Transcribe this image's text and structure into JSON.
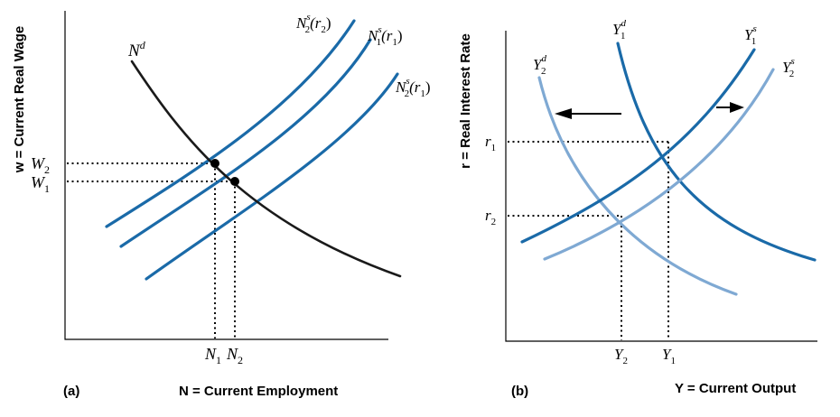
{
  "panel_a": {
    "tag": "(a)",
    "y_axis_label": "w = Current Real Wage",
    "x_axis_label": "N = Current Employment",
    "wage_labels": {
      "w2_base": "W",
      "w2_sub": "2",
      "w1_base": "W",
      "w1_sub": "1"
    },
    "employment_labels": {
      "n1_base": "N",
      "n1_sub": "1",
      "n2_base": "N",
      "n2_sub": "2"
    },
    "curves": {
      "nd": {
        "base": "N",
        "sup": "d"
      },
      "ns2_r2": {
        "base": "N",
        "sub": "2",
        "sup": "s",
        "tail": "(r",
        "tail_sub": "2",
        "close": ")"
      },
      "ns1_r1": {
        "base": "N",
        "sub": "1",
        "sup": "s",
        "tail": "(r",
        "tail_sub": "1",
        "close": ")"
      },
      "ns2_r1": {
        "base": "N",
        "sub": "2",
        "sup": "s",
        "tail": "(r",
        "tail_sub": "1",
        "close": ")"
      }
    }
  },
  "panel_b": {
    "tag": "(b)",
    "y_axis_label": "r = Real Interest Rate",
    "x_axis_label": "Y = Current Output",
    "rate_labels": {
      "r1_base": "r",
      "r1_sub": "1",
      "r2_base": "r",
      "r2_sub": "2"
    },
    "output_labels": {
      "y2_base": "Y",
      "y2_sub": "2",
      "y1_base": "Y",
      "y1_sub": "1"
    },
    "curves": {
      "y2d": {
        "base": "Y",
        "sub": "2",
        "sup": "d"
      },
      "y1d": {
        "base": "Y",
        "sub": "1",
        "sup": "d"
      },
      "y1s": {
        "base": "Y",
        "sub": "1",
        "sup": "s"
      },
      "y2s": {
        "base": "Y",
        "sub": "2",
        "sup": "s"
      }
    }
  },
  "colors": {
    "dark_blue": "#1a6aa8",
    "light_blue": "#7fa9d3",
    "black": "#1a1a1a"
  }
}
